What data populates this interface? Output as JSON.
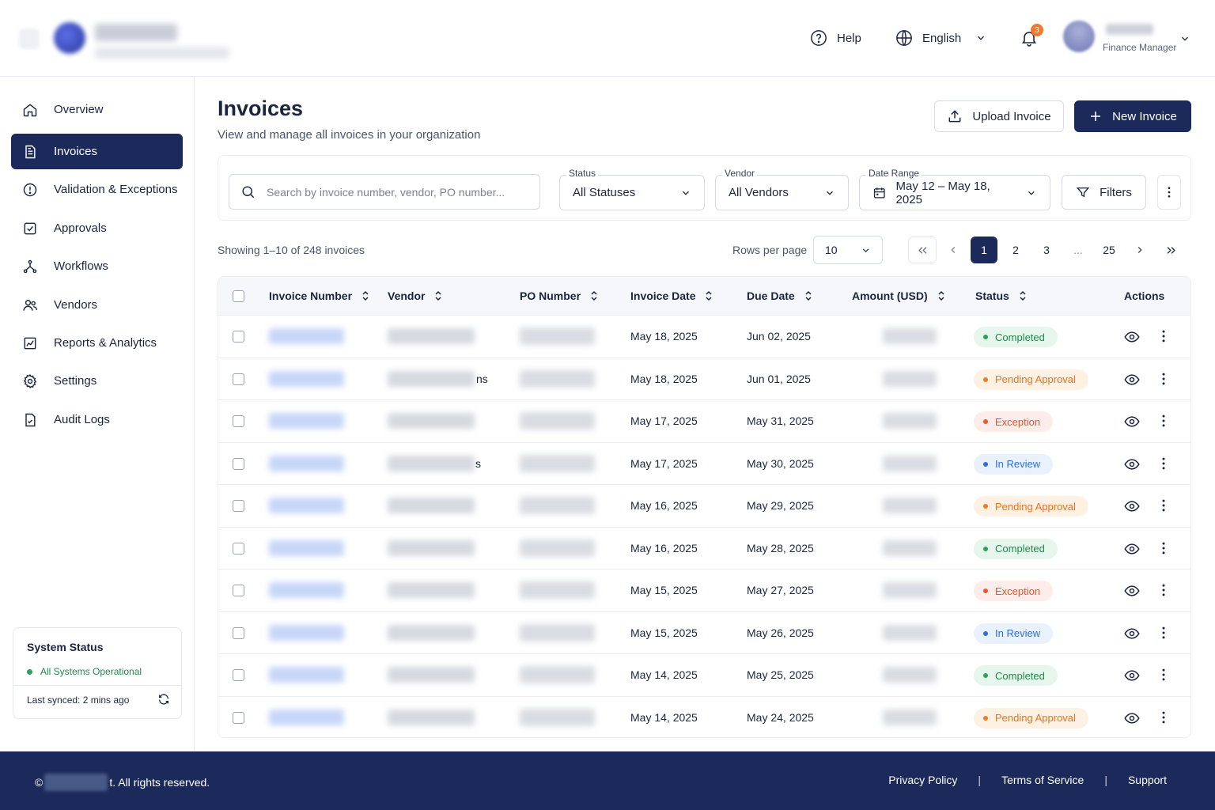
{
  "header": {
    "help_label": "Help",
    "language_label": "English",
    "notification_count": "3",
    "user_role": "Finance Manager"
  },
  "sidebar": {
    "items": [
      {
        "label": "Overview",
        "icon": "home-icon"
      },
      {
        "label": "Invoices",
        "icon": "invoice-icon",
        "active": true
      },
      {
        "label": "Validation & Exceptions",
        "icon": "alert-circle-icon"
      },
      {
        "label": "Approvals",
        "icon": "check-square-icon"
      },
      {
        "label": "Workflows",
        "icon": "workflow-icon"
      },
      {
        "label": "Vendors",
        "icon": "users-icon"
      },
      {
        "label": "Reports & Analytics",
        "icon": "chart-icon"
      },
      {
        "label": "Settings",
        "icon": "gear-icon"
      },
      {
        "label": "Audit Logs",
        "icon": "audit-icon"
      }
    ],
    "system_status": {
      "title": "System Status",
      "status": "All Systems Operational",
      "last_synced": "Last synced: 2 mins ago"
    }
  },
  "main": {
    "title": "Invoices",
    "subtitle": "View and manage all invoices in your organization",
    "upload_label": "Upload Invoice",
    "new_label": "New Invoice"
  },
  "filters": {
    "search_placeholder": "Search by invoice number, vendor, PO number...",
    "status_label": "Status",
    "status_value": "All Statuses",
    "vendor_label": "Vendor",
    "vendor_value": "All Vendors",
    "date_label": "Date Range",
    "date_value": "May 12 – May 18, 2025",
    "filters_label": "Filters"
  },
  "pagination": {
    "showing": "Showing 1–10 of 248 invoices",
    "rows_per_page_label": "Rows per page",
    "rows_per_page": "10",
    "pages": [
      "1",
      "2",
      "3",
      "...",
      "25"
    ],
    "current": "1"
  },
  "table": {
    "columns": [
      "Invoice Number",
      "Vendor",
      "PO Number",
      "Invoice Date",
      "Due Date",
      "Amount (USD)",
      "Status",
      "Actions"
    ],
    "rows": [
      {
        "vendor_suffix": "",
        "invoice_date": "May 18, 2025",
        "due_date": "Jun 02, 2025",
        "status": "Completed",
        "kind": "completed"
      },
      {
        "vendor_suffix": "ns",
        "invoice_date": "May 18, 2025",
        "due_date": "Jun 01, 2025",
        "status": "Pending Approval",
        "kind": "pending"
      },
      {
        "vendor_suffix": "",
        "invoice_date": "May 17, 2025",
        "due_date": "May 31, 2025",
        "status": "Exception",
        "kind": "exception"
      },
      {
        "vendor_suffix": "s",
        "invoice_date": "May 17, 2025",
        "due_date": "May 30, 2025",
        "status": "In Review",
        "kind": "review"
      },
      {
        "vendor_suffix": "",
        "invoice_date": "May 16, 2025",
        "due_date": "May 29, 2025",
        "status": "Pending Approval",
        "kind": "pending"
      },
      {
        "vendor_suffix": "",
        "invoice_date": "May 16, 2025",
        "due_date": "May 28, 2025",
        "status": "Completed",
        "kind": "completed"
      },
      {
        "vendor_suffix": "",
        "invoice_date": "May 15, 2025",
        "due_date": "May 27, 2025",
        "status": "Exception",
        "kind": "exception"
      },
      {
        "vendor_suffix": "",
        "invoice_date": "May 15, 2025",
        "due_date": "May 26, 2025",
        "status": "In Review",
        "kind": "review"
      },
      {
        "vendor_suffix": "",
        "invoice_date": "May 14, 2025",
        "due_date": "May 25, 2025",
        "status": "Completed",
        "kind": "completed"
      },
      {
        "vendor_suffix": "",
        "invoice_date": "May 14, 2025",
        "due_date": "May 24, 2025",
        "status": "Pending Approval",
        "kind": "pending"
      }
    ]
  },
  "footer": {
    "copyright_prefix": "©",
    "copyright_suffix": "t. All rights reserved.",
    "links": [
      "Privacy Policy",
      "Terms of Service",
      "Support"
    ],
    "separator": "|"
  }
}
